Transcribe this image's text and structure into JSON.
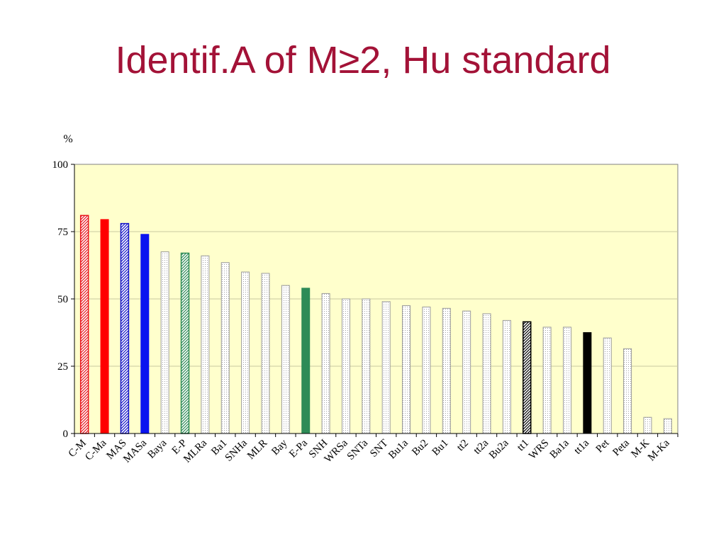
{
  "slide": {
    "title": "Identif.A of M≥2, Hu standard"
  },
  "chart_data": {
    "type": "bar",
    "title": "",
    "xlabel": "",
    "ylabel": "%",
    "ylim": [
      0,
      100
    ],
    "yticks": [
      0,
      25,
      50,
      75,
      100
    ],
    "grid": true,
    "legend": "none",
    "plot_background": "#ffffcc",
    "categories": [
      "C-M",
      "C-Ma",
      "MAS",
      "MASa",
      "Baya",
      "E-P",
      "MLRa",
      "Ba1",
      "SNHa",
      "MLR",
      "Bay",
      "E-Pa",
      "SNH",
      "WRSa",
      "SNTa",
      "SNT",
      "Bu1a",
      "Bu2",
      "Bu1",
      "tt2",
      "tt2a",
      "Bu2a",
      "tt1",
      "WRS",
      "Ba1a",
      "tt1a",
      "Pet",
      "Peta",
      "M-K",
      "M-Ka"
    ],
    "values": [
      81,
      79.5,
      78,
      74,
      67.5,
      67,
      66,
      63.5,
      60,
      59.5,
      55,
      54,
      52,
      50,
      50,
      49,
      47.5,
      47,
      46.5,
      45.5,
      44.5,
      42,
      41.5,
      39.5,
      39.5,
      37.5,
      35.5,
      31.5,
      6,
      5.5
    ],
    "styles": [
      "hatch",
      "solid",
      "hatch",
      "solid",
      "dotted",
      "hatch",
      "dotted",
      "dotted",
      "dotted",
      "dotted",
      "dotted",
      "solid",
      "dotted",
      "dotted",
      "dotted",
      "dotted",
      "dotted",
      "dotted",
      "dotted",
      "dotted",
      "dotted",
      "dotted",
      "hatch",
      "dotted",
      "dotted",
      "solid",
      "dotted",
      "dotted",
      "dotted",
      "dotted"
    ],
    "colors": [
      "#e8141c",
      "#ff0000",
      "#1414c8",
      "#0a14f0",
      "#a0a0a0",
      "#2e8b57",
      "#a0a0a0",
      "#a0a0a0",
      "#a0a0a0",
      "#a0a0a0",
      "#a0a0a0",
      "#2e8b57",
      "#a0a0a0",
      "#a0a0a0",
      "#a0a0a0",
      "#a0a0a0",
      "#a0a0a0",
      "#a0a0a0",
      "#a0a0a0",
      "#a0a0a0",
      "#a0a0a0",
      "#a0a0a0",
      "#000000",
      "#a0a0a0",
      "#a0a0a0",
      "#000000",
      "#a0a0a0",
      "#a0a0a0",
      "#a0a0a0",
      "#a0a0a0"
    ]
  }
}
